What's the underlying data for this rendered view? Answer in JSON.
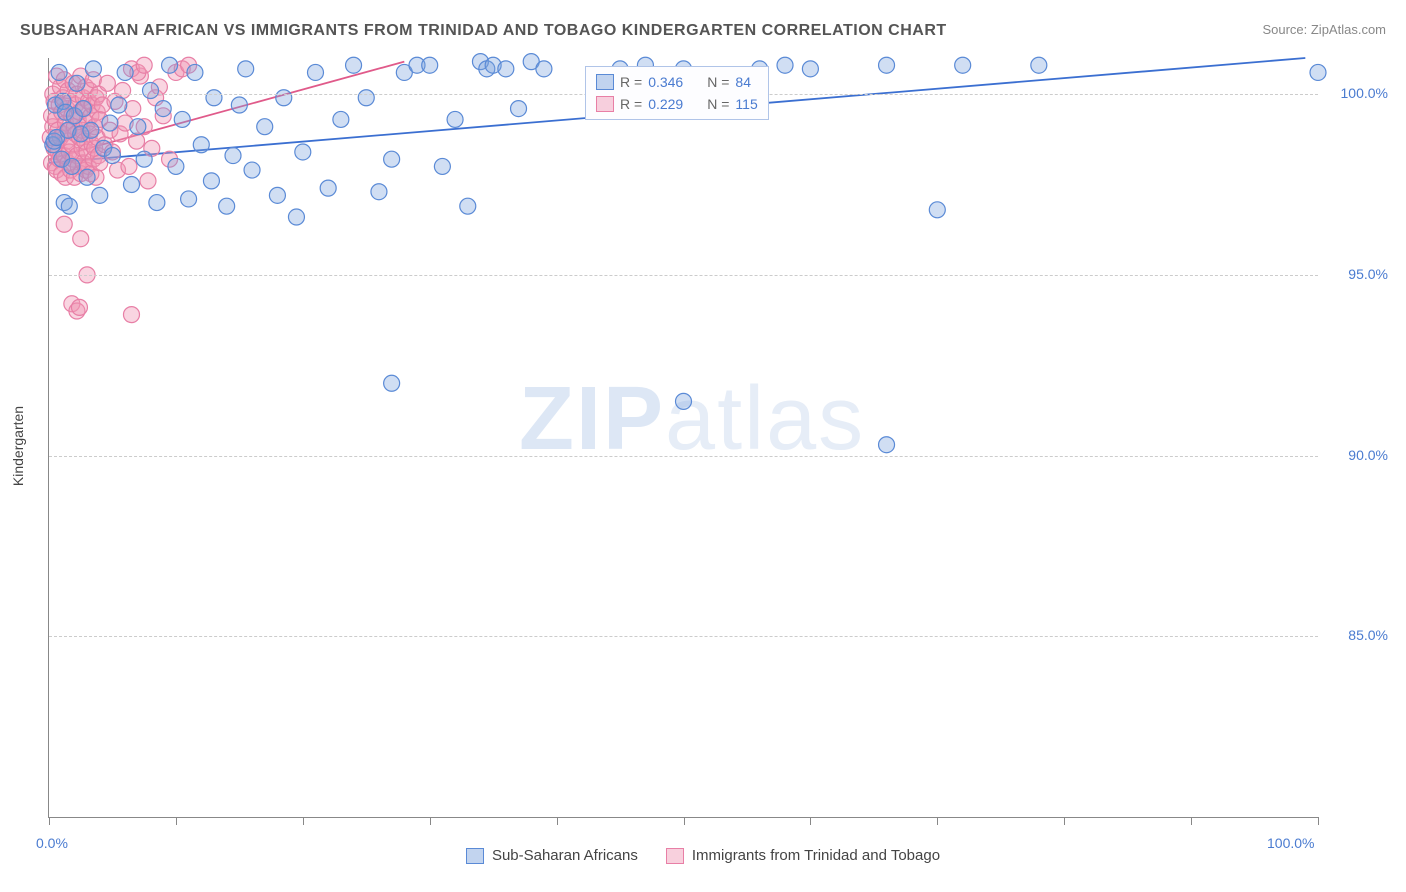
{
  "title": "SUBSAHARAN AFRICAN VS IMMIGRANTS FROM TRINIDAD AND TOBAGO KINDERGARTEN CORRELATION CHART",
  "source": "Source: ZipAtlas.com",
  "y_axis": {
    "label": "Kindergarten"
  },
  "watermark": {
    "zip": "ZIP",
    "atlas": "atlas"
  },
  "chart": {
    "type": "scatter",
    "background_color": "#ffffff",
    "grid_color": "#cccccc",
    "axis_color": "#888888",
    "xlim": [
      0,
      100
    ],
    "ylim": [
      80,
      101
    ],
    "x_ticks": [
      0,
      10,
      20,
      30,
      40,
      50,
      60,
      70,
      80,
      90,
      100
    ],
    "x_tick_labels_shown": {
      "0": "0.0%",
      "100": "100.0%"
    },
    "y_ticks": [
      85,
      90,
      95,
      100
    ],
    "y_tick_labels": {
      "85": "85.0%",
      "90": "90.0%",
      "95": "95.0%",
      "100": "100.0%"
    },
    "label_color": "#4a7bd0",
    "label_fontsize": 14,
    "marker_radius": 8,
    "marker_stroke_width": 1.2,
    "line_width": 1.8,
    "series": [
      {
        "name": "Sub-Saharan Africans",
        "fill": "rgba(120,160,220,0.35)",
        "stroke": "#5a8ad6",
        "line_color": "#3b6fd1",
        "R": "0.346",
        "N": "84",
        "trend": {
          "x1": 0,
          "y1": 98.1,
          "x2": 99,
          "y2": 101.0
        },
        "points": [
          [
            0.3,
            98.6
          ],
          [
            0.4,
            98.7
          ],
          [
            0.5,
            99.7
          ],
          [
            0.6,
            98.8
          ],
          [
            0.8,
            100.6
          ],
          [
            1.0,
            98.2
          ],
          [
            1.1,
            99.8
          ],
          [
            1.2,
            97.0
          ],
          [
            1.3,
            99.5
          ],
          [
            1.5,
            99.0
          ],
          [
            1.6,
            96.9
          ],
          [
            1.8,
            98.0
          ],
          [
            2.0,
            99.4
          ],
          [
            2.2,
            100.3
          ],
          [
            2.5,
            98.9
          ],
          [
            2.7,
            99.6
          ],
          [
            3.0,
            97.7
          ],
          [
            3.3,
            99.0
          ],
          [
            3.5,
            100.7
          ],
          [
            4.0,
            97.2
          ],
          [
            4.3,
            98.5
          ],
          [
            4.8,
            99.2
          ],
          [
            5.0,
            98.3
          ],
          [
            5.5,
            99.7
          ],
          [
            6.0,
            100.6
          ],
          [
            6.5,
            97.5
          ],
          [
            7.0,
            99.1
          ],
          [
            7.5,
            98.2
          ],
          [
            8.0,
            100.1
          ],
          [
            8.5,
            97.0
          ],
          [
            9.0,
            99.6
          ],
          [
            9.5,
            100.8
          ],
          [
            10.0,
            98.0
          ],
          [
            10.5,
            99.3
          ],
          [
            11.0,
            97.1
          ],
          [
            11.5,
            100.6
          ],
          [
            12.0,
            98.6
          ],
          [
            12.8,
            97.6
          ],
          [
            13.0,
            99.9
          ],
          [
            14.0,
            96.9
          ],
          [
            14.5,
            98.3
          ],
          [
            15.0,
            99.7
          ],
          [
            15.5,
            100.7
          ],
          [
            16.0,
            97.9
          ],
          [
            17.0,
            99.1
          ],
          [
            18.0,
            97.2
          ],
          [
            18.5,
            99.9
          ],
          [
            19.5,
            96.6
          ],
          [
            20.0,
            98.4
          ],
          [
            21.0,
            100.6
          ],
          [
            22.0,
            97.4
          ],
          [
            23.0,
            99.3
          ],
          [
            24.0,
            100.8
          ],
          [
            25.0,
            99.9
          ],
          [
            26.0,
            97.3
          ],
          [
            27.0,
            98.2
          ],
          [
            28.0,
            100.6
          ],
          [
            29.0,
            100.8
          ],
          [
            30.0,
            100.8
          ],
          [
            31.0,
            98.0
          ],
          [
            32.0,
            99.3
          ],
          [
            33.0,
            96.9
          ],
          [
            34.0,
            100.9
          ],
          [
            34.5,
            100.7
          ],
          [
            35.0,
            100.8
          ],
          [
            36.0,
            100.7
          ],
          [
            37.0,
            99.6
          ],
          [
            38.0,
            100.9
          ],
          [
            39.0,
            100.7
          ],
          [
            45.0,
            100.7
          ],
          [
            47.0,
            100.8
          ],
          [
            50.0,
            100.7
          ],
          [
            52.0,
            99.6
          ],
          [
            56.0,
            100.7
          ],
          [
            58.0,
            100.8
          ],
          [
            60.0,
            100.7
          ],
          [
            66.0,
            100.8
          ],
          [
            72.0,
            100.8
          ],
          [
            78.0,
            100.8
          ],
          [
            100.0,
            100.6
          ],
          [
            27.0,
            92.0
          ],
          [
            50.0,
            91.5
          ],
          [
            66.0,
            90.3
          ],
          [
            70.0,
            96.8
          ]
        ]
      },
      {
        "name": "Immigrants from Trinidad and Tobago",
        "fill": "rgba(240,150,180,0.4)",
        "stroke": "#e87fa6",
        "line_color": "#e05a8a",
        "R": "0.229",
        "N": "115",
        "trend": {
          "x1": 0,
          "y1": 98.2,
          "x2": 28,
          "y2": 100.9
        },
        "points": [
          [
            0.1,
            98.8
          ],
          [
            0.2,
            99.4
          ],
          [
            0.2,
            98.1
          ],
          [
            0.3,
            100.0
          ],
          [
            0.3,
            99.1
          ],
          [
            0.4,
            98.5
          ],
          [
            0.4,
            99.8
          ],
          [
            0.5,
            98.0
          ],
          [
            0.5,
            99.3
          ],
          [
            0.5,
            98.6
          ],
          [
            0.6,
            100.5
          ],
          [
            0.6,
            97.9
          ],
          [
            0.7,
            99.0
          ],
          [
            0.7,
            98.4
          ],
          [
            0.8,
            99.7
          ],
          [
            0.8,
            98.2
          ],
          [
            0.9,
            100.2
          ],
          [
            0.9,
            98.8
          ],
          [
            1.0,
            99.5
          ],
          [
            1.0,
            97.8
          ],
          [
            1.1,
            98.9
          ],
          [
            1.1,
            99.9
          ],
          [
            1.2,
            98.3
          ],
          [
            1.2,
            100.4
          ],
          [
            1.3,
            99.2
          ],
          [
            1.3,
            97.7
          ],
          [
            1.4,
            98.7
          ],
          [
            1.4,
            99.6
          ],
          [
            1.5,
            98.1
          ],
          [
            1.5,
            100.1
          ],
          [
            1.6,
            99.0
          ],
          [
            1.6,
            98.4
          ],
          [
            1.7,
            99.8
          ],
          [
            1.7,
            97.9
          ],
          [
            1.8,
            98.6
          ],
          [
            1.8,
            99.4
          ],
          [
            1.9,
            100.3
          ],
          [
            1.9,
            98.2
          ],
          [
            2.0,
            99.1
          ],
          [
            2.0,
            97.7
          ],
          [
            2.1,
            98.9
          ],
          [
            2.1,
            99.7
          ],
          [
            2.2,
            98.3
          ],
          [
            2.2,
            100.0
          ],
          [
            2.3,
            99.3
          ],
          [
            2.3,
            98.0
          ],
          [
            2.4,
            98.8
          ],
          [
            2.4,
            99.5
          ],
          [
            2.5,
            97.8
          ],
          [
            2.5,
            100.5
          ],
          [
            2.6,
            99.0
          ],
          [
            2.6,
            98.5
          ],
          [
            2.7,
            99.9
          ],
          [
            2.7,
            98.1
          ],
          [
            2.8,
            98.7
          ],
          [
            2.8,
            99.6
          ],
          [
            2.9,
            100.2
          ],
          [
            2.9,
            97.9
          ],
          [
            3.0,
            99.2
          ],
          [
            3.0,
            98.4
          ],
          [
            3.1,
            99.8
          ],
          [
            3.1,
            98.0
          ],
          [
            3.2,
            98.9
          ],
          [
            3.2,
            100.1
          ],
          [
            3.3,
            99.4
          ],
          [
            3.3,
            97.8
          ],
          [
            3.4,
            98.6
          ],
          [
            3.4,
            99.7
          ],
          [
            3.5,
            98.2
          ],
          [
            3.5,
            100.4
          ],
          [
            3.6,
            99.1
          ],
          [
            3.6,
            98.5
          ],
          [
            3.7,
            99.9
          ],
          [
            3.7,
            97.7
          ],
          [
            3.8,
            98.8
          ],
          [
            3.8,
            99.5
          ],
          [
            3.9,
            100.0
          ],
          [
            3.9,
            98.3
          ],
          [
            4.0,
            99.3
          ],
          [
            4.0,
            98.1
          ],
          [
            4.2,
            99.7
          ],
          [
            4.4,
            98.6
          ],
          [
            4.6,
            100.3
          ],
          [
            4.8,
            99.0
          ],
          [
            5.0,
            98.4
          ],
          [
            5.2,
            99.8
          ],
          [
            5.4,
            97.9
          ],
          [
            5.6,
            98.9
          ],
          [
            5.8,
            100.1
          ],
          [
            6.0,
            99.2
          ],
          [
            6.3,
            98.0
          ],
          [
            6.6,
            99.6
          ],
          [
            6.9,
            98.7
          ],
          [
            7.2,
            100.5
          ],
          [
            7.5,
            99.1
          ],
          [
            7.8,
            97.6
          ],
          [
            8.1,
            98.5
          ],
          [
            8.4,
            99.9
          ],
          [
            8.7,
            100.2
          ],
          [
            9.0,
            99.4
          ],
          [
            9.5,
            98.2
          ],
          [
            10.0,
            100.6
          ],
          [
            10.5,
            100.7
          ],
          [
            11.0,
            100.8
          ],
          [
            6.5,
            100.7
          ],
          [
            7.0,
            100.6
          ],
          [
            7.5,
            100.8
          ],
          [
            1.2,
            96.4
          ],
          [
            2.5,
            96.0
          ],
          [
            3.0,
            95.0
          ],
          [
            1.8,
            94.2
          ],
          [
            2.2,
            94.0
          ],
          [
            2.4,
            94.1
          ],
          [
            6.5,
            93.9
          ]
        ]
      }
    ]
  },
  "stat_legend": {
    "rows": [
      {
        "swatch_fill": "rgba(120,160,220,0.45)",
        "swatch_stroke": "#5a8ad6",
        "R": "0.346",
        "N": "84"
      },
      {
        "swatch_fill": "rgba(240,150,180,0.45)",
        "swatch_stroke": "#e87fa6",
        "R": "0.229",
        "N": "115"
      }
    ]
  },
  "bottom_legend": {
    "items": [
      {
        "fill": "rgba(120,160,220,0.45)",
        "stroke": "#5a8ad6",
        "label": "Sub-Saharan Africans"
      },
      {
        "fill": "rgba(240,150,180,0.45)",
        "stroke": "#e87fa6",
        "label": "Immigrants from Trinidad and Tobago"
      }
    ]
  }
}
